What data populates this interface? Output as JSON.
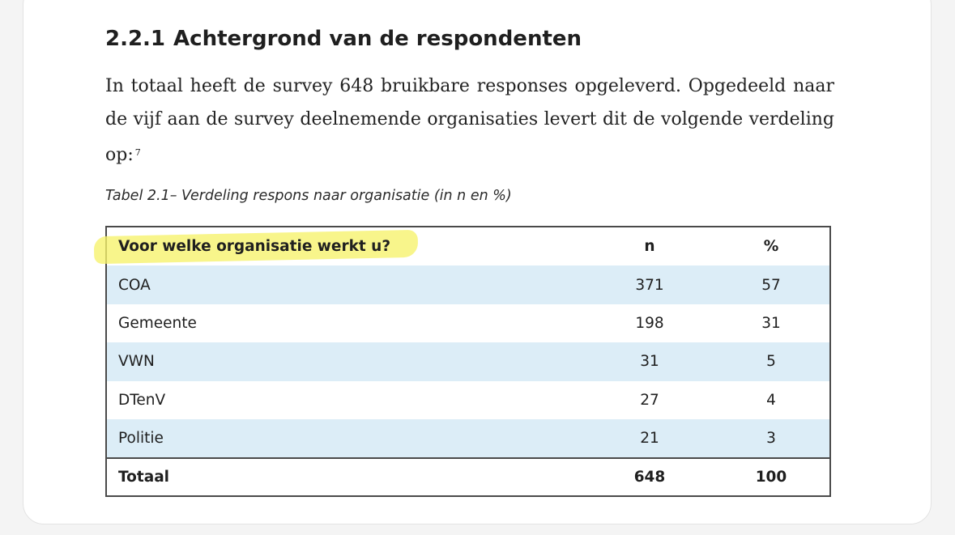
{
  "section": {
    "number": "2.2.1",
    "title": "Achtergrond van de respondenten"
  },
  "paragraph": {
    "text": "In totaal heeft de survey 648 bruikbare responses opgeleverd. Opgedeeld naar de vijf aan de survey deelnemende organisaties levert dit de volgende verdeling op:",
    "footnote": "7"
  },
  "table": {
    "caption": "Tabel 2.1– Verdeling respons naar organisatie (in n en %)",
    "headers": {
      "organisation": "Voor welke organisatie werkt u?",
      "n": "n",
      "percent": "%"
    },
    "rows": [
      {
        "org": "COA",
        "n": "371",
        "pct": "57"
      },
      {
        "org": "Gemeente",
        "n": "198",
        "pct": "31"
      },
      {
        "org": "VWN",
        "n": "31",
        "pct": "5"
      },
      {
        "org": "DTenV",
        "n": "27",
        "pct": "4"
      },
      {
        "org": "Politie",
        "n": "21",
        "pct": "3"
      }
    ],
    "total": {
      "label": "Totaal",
      "n": "648",
      "pct": "100"
    }
  },
  "colors": {
    "row_shade": "#dcedf7",
    "highlighter": "#f6f26a",
    "border": "#4a4a4a"
  }
}
